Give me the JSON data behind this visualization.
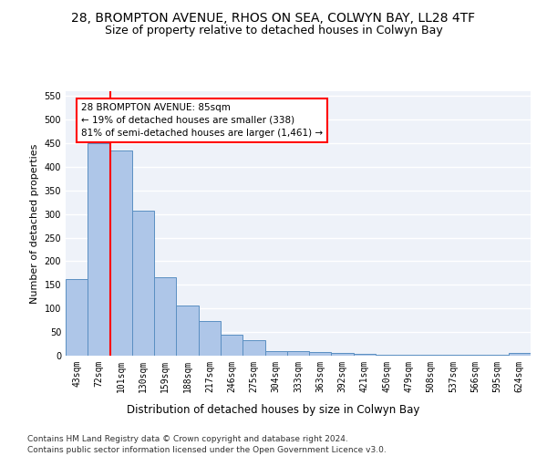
{
  "title": "28, BROMPTON AVENUE, RHOS ON SEA, COLWYN BAY, LL28 4TF",
  "subtitle": "Size of property relative to detached houses in Colwyn Bay",
  "xlabel": "Distribution of detached houses by size in Colwyn Bay",
  "ylabel": "Number of detached properties",
  "footer1": "Contains HM Land Registry data © Crown copyright and database right 2024.",
  "footer2": "Contains public sector information licensed under the Open Government Licence v3.0.",
  "categories": [
    "43sqm",
    "72sqm",
    "101sqm",
    "130sqm",
    "159sqm",
    "188sqm",
    "217sqm",
    "246sqm",
    "275sqm",
    "304sqm",
    "333sqm",
    "363sqm",
    "392sqm",
    "421sqm",
    "450sqm",
    "479sqm",
    "508sqm",
    "537sqm",
    "566sqm",
    "595sqm",
    "624sqm"
  ],
  "values": [
    163,
    450,
    435,
    307,
    167,
    106,
    74,
    45,
    32,
    10,
    10,
    8,
    5,
    3,
    2,
    2,
    2,
    2,
    2,
    2,
    5
  ],
  "bar_color": "#aec6e8",
  "bar_edge_color": "#5a8fc2",
  "red_line_x": 1.5,
  "annotation_text": "28 BROMPTON AVENUE: 85sqm\n← 19% of detached houses are smaller (338)\n81% of semi-detached houses are larger (1,461) →",
  "annotation_box_color": "white",
  "annotation_box_edge": "red",
  "ylim": [
    0,
    560
  ],
  "yticks": [
    0,
    50,
    100,
    150,
    200,
    250,
    300,
    350,
    400,
    450,
    500,
    550
  ],
  "background_color": "#eef2f9",
  "grid_color": "white",
  "title_fontsize": 10,
  "subtitle_fontsize": 9,
  "xlabel_fontsize": 8.5,
  "ylabel_fontsize": 8,
  "tick_fontsize": 7,
  "footer_fontsize": 6.5
}
